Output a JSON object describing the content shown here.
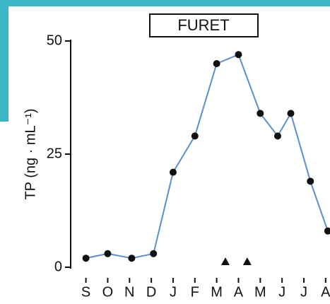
{
  "chart_data": {
    "type": "line",
    "title": "FURET",
    "y_label": "TP (ng · mL⁻¹)",
    "x": [
      0,
      1.0,
      2.1,
      3.1,
      4.0,
      5.0,
      6.0,
      7.0,
      8.0,
      8.8,
      9.4,
      10.3,
      11.1
    ],
    "series": [
      {
        "name": "TP",
        "color": "#5b8fc9",
        "values": [
          2,
          3,
          2,
          3,
          21,
          29,
          45,
          47,
          34,
          29,
          34,
          19,
          8
        ]
      }
    ],
    "xlim": [
      -0.7,
      11.2
    ],
    "xticks": [
      {
        "value": 0,
        "label": "S"
      },
      {
        "value": 1,
        "label": "O"
      },
      {
        "value": 2,
        "label": "N"
      },
      {
        "value": 3,
        "label": "D"
      },
      {
        "value": 4,
        "label": "J"
      },
      {
        "value": 5,
        "label": "F"
      },
      {
        "value": 6,
        "label": "M"
      },
      {
        "value": 7,
        "label": "A"
      },
      {
        "value": 8,
        "label": "M"
      },
      {
        "value": 9,
        "label": "J"
      },
      {
        "value": 10,
        "label": "J"
      },
      {
        "value": 11,
        "label": "A"
      }
    ],
    "ylim": [
      0,
      50
    ],
    "yticks": [
      0,
      25,
      50
    ],
    "markers_x": [
      6.4,
      7.4
    ]
  }
}
